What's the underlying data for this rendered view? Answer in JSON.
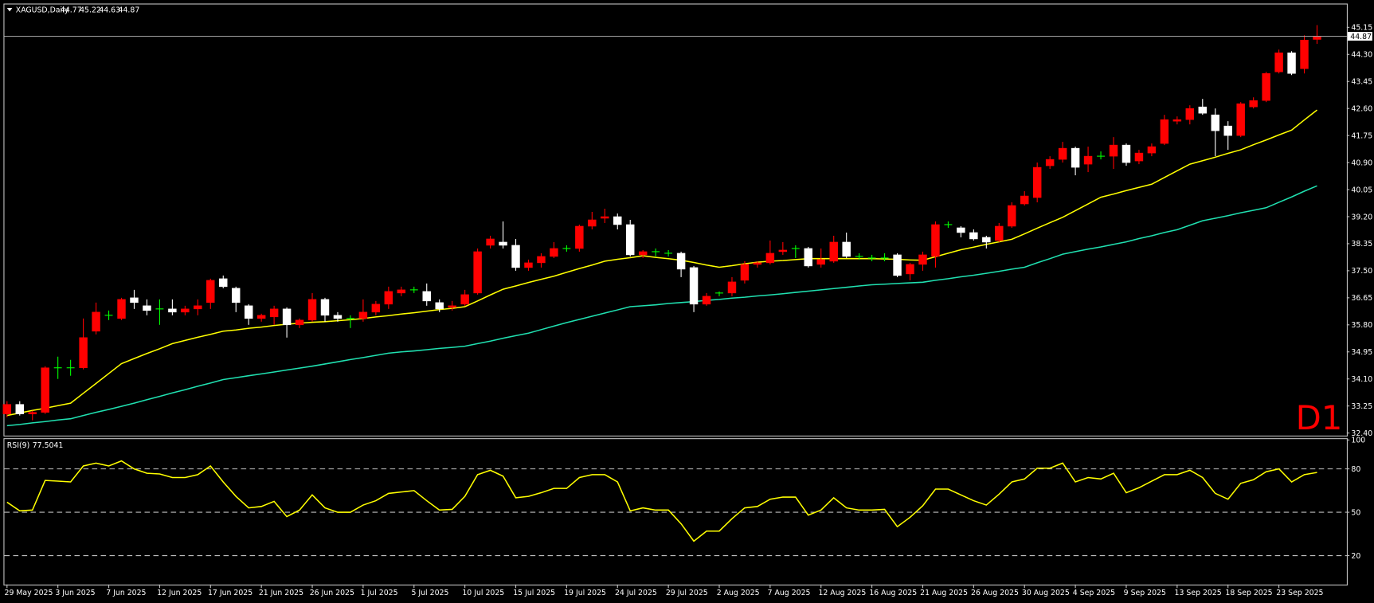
{
  "chart_data": [
    {
      "type": "candlestick",
      "title": "XAGUSD,Daily",
      "timeframe_label": "D1",
      "categories": [
        "29 May 2025",
        null,
        null,
        null,
        "3 Jun 2025",
        null,
        null,
        null,
        "7 Jun 2025",
        null,
        null,
        null,
        "12 Jun 2025",
        null,
        null,
        null,
        "17 Jun 2025",
        null,
        null,
        null,
        "21 Jun 2025",
        null,
        null,
        null,
        "26 Jun 2025",
        null,
        null,
        null,
        "1 Jul 2025",
        null,
        null,
        null,
        "5 Jul 2025",
        null,
        null,
        null,
        "10 Jul 2025",
        null,
        null,
        null,
        "15 Jul 2025",
        null,
        null,
        null,
        "19 Jul 2025",
        null,
        null,
        null,
        "24 Jul 2025",
        null,
        null,
        null,
        "29 Jul 2025",
        null,
        null,
        null,
        "2 Aug 2025",
        null,
        null,
        null,
        "7 Aug 2025",
        null,
        null,
        null,
        "12 Aug 2025",
        null,
        null,
        null,
        "16 Aug 2025",
        null,
        null,
        null,
        "21 Aug 2025",
        null,
        null,
        null,
        "26 Aug 2025",
        null,
        null,
        null,
        "30 Aug 2025",
        null,
        null,
        null,
        "4 Sep 2025",
        null,
        null,
        null,
        "9 Sep 2025",
        null,
        null,
        null,
        "13 Sep 2025",
        null,
        null,
        null,
        "18 Sep 2025",
        null,
        null,
        null,
        "23 Sep 2025",
        null,
        null,
        null
      ],
      "open": [
        33.0,
        33.3,
        33.0,
        33.05,
        34.45,
        34.45,
        34.45,
        35.6,
        36.1,
        36.0,
        36.65,
        36.4,
        36.3,
        36.3,
        36.2,
        36.3,
        36.5,
        37.25,
        36.95,
        36.4,
        36.0,
        36.05,
        36.3,
        35.8,
        35.95,
        36.6,
        36.1,
        36.0,
        36.0,
        36.2,
        36.45,
        36.8,
        36.9,
        36.85,
        36.5,
        36.35,
        36.45,
        36.8,
        38.3,
        38.4,
        38.3,
        37.6,
        37.75,
        37.95,
        38.2,
        38.2,
        38.9,
        39.15,
        39.2,
        38.95,
        38.0,
        38.1,
        38.05,
        38.05,
        37.6,
        36.45,
        36.8,
        36.8,
        37.2,
        37.7,
        37.75,
        38.1,
        38.2,
        38.2,
        37.7,
        37.8,
        38.4,
        37.95,
        37.9,
        37.9,
        38.0,
        37.4,
        37.7,
        37.95,
        38.95,
        38.85,
        38.7,
        38.55,
        38.45,
        38.9,
        39.6,
        39.8,
        40.8,
        41.0,
        41.35,
        40.85,
        41.1,
        41.1,
        41.45,
        40.95,
        41.2,
        41.5,
        42.2,
        42.25,
        42.65,
        42.4,
        42.05,
        41.75,
        42.65,
        42.85,
        43.75,
        44.35,
        43.85,
        44.77
      ],
      "high": [
        33.4,
        33.4,
        33.1,
        34.5,
        34.8,
        34.7,
        36.0,
        36.5,
        36.25,
        36.65,
        36.9,
        36.6,
        36.6,
        36.6,
        36.4,
        36.6,
        37.25,
        37.35,
        37.0,
        36.45,
        36.15,
        36.4,
        36.35,
        36.0,
        36.8,
        36.65,
        36.2,
        36.1,
        36.6,
        36.55,
        37.0,
        37.0,
        37.0,
        37.1,
        36.6,
        36.55,
        36.9,
        38.2,
        38.6,
        39.05,
        38.5,
        37.85,
        38.05,
        38.4,
        38.3,
        38.95,
        39.35,
        39.45,
        39.3,
        39.1,
        38.15,
        38.2,
        38.15,
        38.1,
        37.65,
        36.8,
        36.85,
        37.3,
        37.8,
        37.8,
        38.45,
        38.4,
        38.3,
        38.25,
        38.2,
        38.6,
        38.7,
        38.05,
        38.0,
        38.05,
        38.05,
        37.75,
        38.1,
        39.05,
        39.05,
        38.9,
        38.8,
        38.6,
        39.0,
        39.65,
        40.0,
        40.9,
        41.1,
        41.55,
        41.4,
        41.4,
        41.25,
        41.7,
        41.5,
        41.3,
        41.5,
        42.4,
        42.35,
        42.7,
        42.9,
        42.6,
        42.2,
        42.8,
        42.95,
        43.75,
        44.45,
        44.4,
        44.9,
        45.22
      ],
      "low": [
        32.9,
        32.95,
        32.8,
        33.0,
        34.1,
        34.2,
        34.4,
        35.5,
        35.95,
        35.95,
        36.3,
        36.1,
        35.8,
        36.1,
        36.1,
        36.1,
        36.3,
        36.95,
        36.2,
        35.8,
        35.9,
        35.8,
        35.4,
        35.7,
        35.9,
        35.9,
        35.9,
        35.7,
        35.9,
        36.1,
        36.3,
        36.7,
        36.8,
        36.4,
        36.2,
        36.25,
        36.4,
        36.75,
        38.2,
        38.2,
        37.5,
        37.5,
        37.6,
        37.9,
        38.1,
        38.1,
        38.8,
        39.0,
        38.8,
        37.95,
        37.9,
        37.95,
        37.95,
        37.3,
        36.2,
        36.4,
        36.7,
        36.7,
        37.1,
        37.6,
        37.7,
        38.0,
        37.9,
        37.6,
        37.6,
        37.75,
        37.9,
        37.85,
        37.8,
        37.8,
        37.3,
        37.2,
        37.5,
        37.6,
        38.85,
        38.55,
        38.45,
        38.2,
        38.4,
        38.85,
        39.55,
        39.65,
        40.7,
        40.9,
        40.5,
        40.6,
        41.0,
        40.7,
        40.8,
        40.85,
        41.1,
        41.45,
        42.1,
        42.1,
        42.4,
        41.1,
        41.3,
        41.7,
        42.6,
        42.8,
        43.7,
        43.65,
        43.7,
        44.63
      ],
      "close": [
        33.3,
        33.0,
        33.05,
        34.45,
        34.45,
        34.45,
        35.4,
        36.2,
        36.1,
        36.6,
        36.5,
        36.25,
        36.3,
        36.2,
        36.3,
        36.4,
        37.2,
        37.0,
        36.5,
        36.0,
        36.1,
        36.3,
        35.8,
        35.95,
        36.6,
        36.1,
        36.0,
        36.0,
        36.2,
        36.45,
        36.85,
        36.9,
        36.9,
        36.55,
        36.3,
        36.4,
        36.75,
        38.1,
        38.5,
        38.3,
        37.6,
        37.75,
        37.95,
        38.2,
        38.2,
        38.9,
        39.1,
        39.2,
        38.95,
        38.0,
        38.1,
        38.1,
        38.05,
        37.55,
        36.45,
        36.7,
        36.8,
        37.15,
        37.7,
        37.75,
        38.05,
        38.15,
        38.2,
        37.65,
        37.85,
        38.4,
        37.95,
        37.95,
        37.9,
        37.9,
        37.35,
        37.7,
        38.0,
        38.95,
        38.95,
        38.7,
        38.5,
        38.4,
        38.9,
        39.55,
        39.85,
        40.75,
        41.0,
        41.35,
        40.75,
        41.1,
        41.1,
        41.45,
        40.9,
        41.2,
        41.4,
        42.25,
        42.25,
        42.6,
        42.45,
        41.9,
        41.75,
        42.75,
        42.85,
        43.7,
        44.35,
        43.7,
        44.75,
        44.87
      ],
      "up_color": "#ff0000",
      "down_color": "#ffffff",
      "doji_color": "#00ff00",
      "lines": [
        {
          "color": "#ffff00",
          "values": [
            32.95,
            33.03,
            33.11,
            33.18,
            33.26,
            33.34,
            33.65,
            33.96,
            34.27,
            34.58,
            34.74,
            34.9,
            35.05,
            35.21,
            35.31,
            35.41,
            35.5,
            35.6,
            35.64,
            35.69,
            35.73,
            35.78,
            35.82,
            35.85,
            35.88,
            35.9,
            35.93,
            35.96,
            36.0,
            36.05,
            36.09,
            36.14,
            36.18,
            36.23,
            36.28,
            36.32,
            36.37,
            36.55,
            36.74,
            36.92,
            37.02,
            37.13,
            37.23,
            37.33,
            37.45,
            37.57,
            37.68,
            37.8,
            37.86,
            37.91,
            37.97,
            37.92,
            37.88,
            37.83,
            37.76,
            37.68,
            37.61,
            37.66,
            37.72,
            37.77,
            37.8,
            37.82,
            37.85,
            37.88,
            37.88,
            37.88,
            37.88,
            37.88,
            37.88,
            37.87,
            37.86,
            37.84,
            37.83,
            37.94,
            38.05,
            38.16,
            38.24,
            38.33,
            38.41,
            38.49,
            38.66,
            38.84,
            39.01,
            39.18,
            39.39,
            39.6,
            39.81,
            39.91,
            40.02,
            40.12,
            40.22,
            40.43,
            40.64,
            40.85,
            40.96,
            41.07,
            41.19,
            41.3,
            41.46,
            41.61,
            41.77,
            41.92,
            42.24,
            42.55
          ]
        },
        {
          "color": "#20e0b0",
          "values": [
            32.63,
            32.67,
            32.72,
            32.76,
            32.81,
            32.85,
            32.95,
            33.05,
            33.14,
            33.24,
            33.34,
            33.45,
            33.55,
            33.66,
            33.76,
            33.87,
            33.97,
            34.08,
            34.14,
            34.2,
            34.26,
            34.32,
            34.38,
            34.44,
            34.5,
            34.57,
            34.64,
            34.71,
            34.77,
            34.84,
            34.91,
            34.95,
            34.98,
            35.02,
            35.06,
            35.09,
            35.13,
            35.21,
            35.29,
            35.38,
            35.46,
            35.54,
            35.65,
            35.76,
            35.87,
            35.97,
            36.07,
            36.17,
            36.27,
            36.37,
            36.4,
            36.43,
            36.47,
            36.5,
            36.53,
            36.57,
            36.6,
            36.64,
            36.67,
            36.71,
            36.74,
            36.78,
            36.82,
            36.86,
            36.9,
            36.94,
            36.98,
            37.02,
            37.06,
            37.08,
            37.1,
            37.12,
            37.14,
            37.2,
            37.25,
            37.31,
            37.36,
            37.42,
            37.48,
            37.55,
            37.61,
            37.75,
            37.88,
            38.02,
            38.1,
            38.18,
            38.25,
            38.33,
            38.41,
            38.51,
            38.6,
            38.7,
            38.79,
            38.93,
            39.07,
            39.15,
            39.23,
            39.32,
            39.4,
            39.48,
            39.65,
            39.82,
            40.0,
            40.17
          ]
        }
      ],
      "ylim": [
        32.32,
        45.87
      ],
      "yticks": [
        45.15,
        {
          "value": 44.3,
          "label": "44.30"
        },
        43.45,
        {
          "value": 42.6,
          "label": "42.60"
        },
        41.75,
        {
          "value": 40.9,
          "label": "40.90"
        },
        40.05,
        {
          "value": 39.2,
          "label": "39.20"
        },
        38.35,
        {
          "value": 37.5,
          "label": "37.50"
        },
        36.65,
        {
          "value": 35.8,
          "label": "35.80"
        },
        34.95,
        {
          "value": 34.1,
          "label": "34.10"
        },
        33.25,
        {
          "value": 32.4,
          "label": "32.40"
        }
      ]
    },
    {
      "type": "line",
      "title": "RSI(9)",
      "color": "#ffff00",
      "values": [
        57,
        51,
        51.5,
        72,
        71.5,
        71,
        82,
        84,
        82,
        85.5,
        80,
        77,
        76.5,
        74,
        74,
        76,
        82,
        71,
        61,
        53,
        54,
        57.5,
        47,
        51.5,
        62,
        53,
        50,
        50,
        55,
        58,
        63,
        64,
        65,
        58,
        51.5,
        52,
        61,
        76,
        79,
        75,
        60,
        61,
        63.5,
        66.5,
        66.5,
        74,
        76,
        76,
        71,
        51,
        53,
        51.5,
        51.5,
        42,
        30,
        37,
        37,
        45.5,
        53,
        54,
        59,
        60.5,
        60.5,
        48,
        51.5,
        60,
        53,
        51.5,
        51.5,
        52,
        40,
        46.5,
        54.5,
        66,
        66,
        62,
        58,
        55,
        62.5,
        71,
        73,
        80.5,
        80.5,
        84,
        71,
        74,
        73,
        77,
        63.5,
        67,
        71.5,
        76,
        76,
        79,
        74,
        63,
        59,
        70,
        72.5,
        78,
        80,
        71,
        76,
        77.5041
      ],
      "ylim": [
        0,
        100
      ],
      "yticks": [
        20,
        50,
        80,
        100
      ]
    }
  ]
}
